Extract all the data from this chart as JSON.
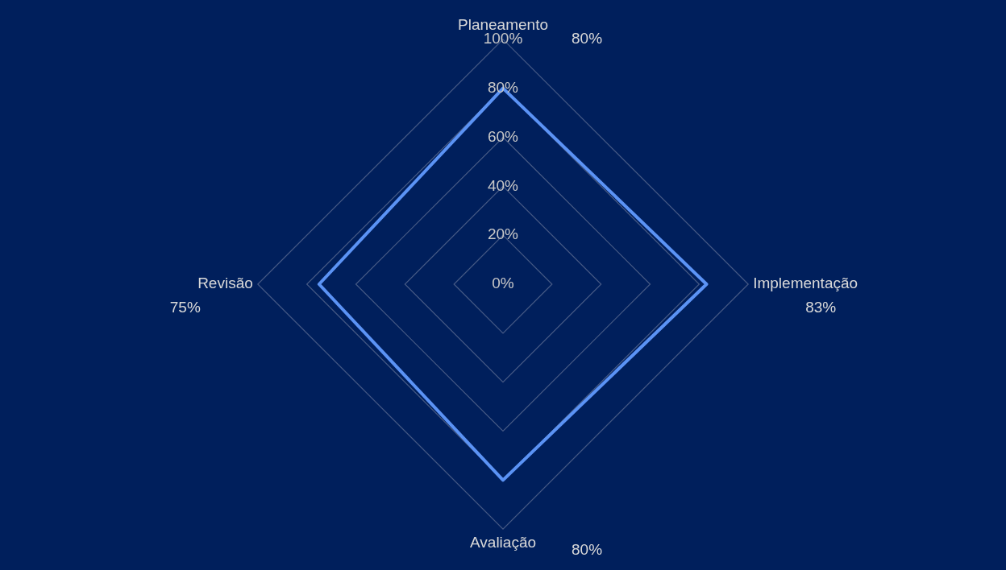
{
  "chart_data": {
    "type": "radar",
    "categories": [
      "Planeamento",
      "Implementação",
      "Avaliação",
      "Revisão"
    ],
    "series": [
      {
        "color": "#5b93f5",
        "values": [
          80,
          83,
          80,
          75
        ]
      }
    ],
    "value_labels": [
      "80%",
      "83%",
      "80%",
      "75%"
    ],
    "ylim": [
      0,
      100
    ],
    "yticks": [
      {
        "value": 0,
        "label": "0%"
      },
      {
        "value": 20,
        "label": "20%"
      },
      {
        "value": 40,
        "label": "40%"
      },
      {
        "value": 60,
        "label": "60%"
      },
      {
        "value": 80,
        "label": "80%"
      },
      {
        "value": 100,
        "label": "100%"
      }
    ],
    "grid": true,
    "legend": false,
    "marker": "none",
    "line_style": "solid"
  }
}
